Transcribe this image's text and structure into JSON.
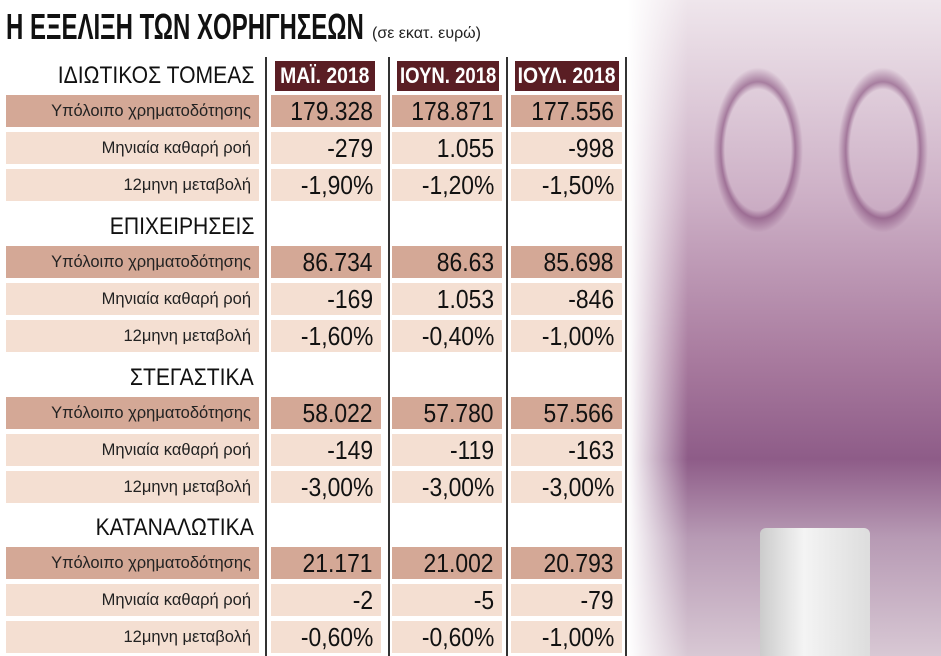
{
  "title": "Η ΕΞΕΛΙΞΗ ΤΩΝ ΧΟΡΗΓΗΣΕΩΝ",
  "subtitle": "(σε εκατ. ευρώ)",
  "colors": {
    "header": "#5a1e24",
    "balance_row": "#d4a896",
    "light_row": "#f4dfd2"
  },
  "chart_data": {
    "type": "table",
    "columns": [
      "ΜΑΪ. 2018",
      "ΙΟΥΝ. 2018",
      "ΙΟΥΛ. 2018"
    ],
    "row_labels": [
      "Υπόλοιπο χρηματοδότησης",
      "Μηνιαία καθαρή ροή",
      "12μηνη μεταβολή"
    ],
    "sections": [
      {
        "name": "ΙΔΙΩΤΙΚΟΣ ΤΟΜΕΑΣ",
        "rows": [
          [
            "179.328",
            "178.871",
            "177.556"
          ],
          [
            "-279",
            "1.055",
            "-998"
          ],
          [
            "-1,90%",
            "-1,20%",
            "-1,50%"
          ]
        ]
      },
      {
        "name": "ΕΠΙΧΕΙΡΗΣΕΙΣ",
        "rows": [
          [
            "86.734",
            "86.63",
            "85.698"
          ],
          [
            "-169",
            "1.053",
            "-846"
          ],
          [
            "-1,60%",
            "-0,40%",
            "-1,00%"
          ]
        ]
      },
      {
        "name": "ΣΤΕΓΑΣΤΙΚΑ",
        "rows": [
          [
            "58.022",
            "57.780",
            "57.566"
          ],
          [
            "-149",
            "-119",
            "-163"
          ],
          [
            "-3,00%",
            "-3,00%",
            "-3,00%"
          ]
        ]
      },
      {
        "name": "ΚΑΤΑΝΑΛΩΤΙΚΑ",
        "rows": [
          [
            "21.171",
            "21.002",
            "20.793"
          ],
          [
            "-2",
            "-5",
            "-79"
          ],
          [
            "-0,60%",
            "-0,60%",
            "-1,00%"
          ]
        ]
      }
    ]
  }
}
